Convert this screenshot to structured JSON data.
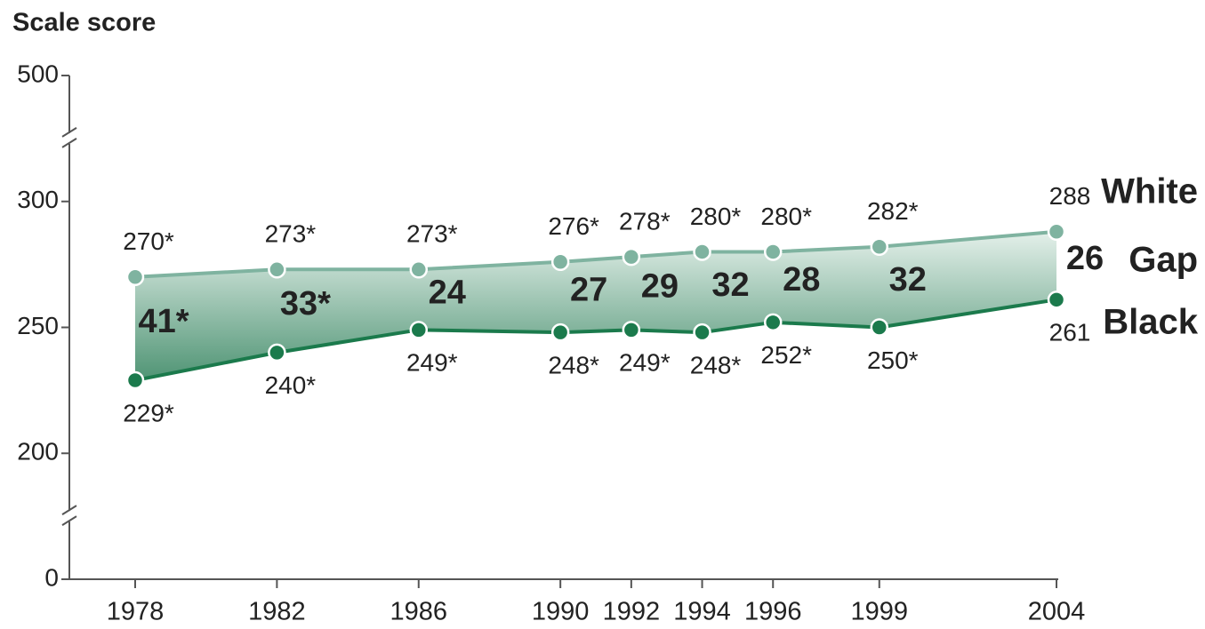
{
  "chart_data": {
    "type": "line",
    "y_axis_label": "Scale score",
    "x": [
      1978,
      1982,
      1986,
      1990,
      1992,
      1994,
      1996,
      1999,
      2004
    ],
    "xlim": [
      1978,
      2004
    ],
    "ylim": [
      0,
      500
    ],
    "yticks": [
      0,
      200,
      250,
      300,
      500
    ],
    "broken_axis": true,
    "series": [
      {
        "name": "White",
        "color": "#7fb3a0",
        "values": [
          270,
          273,
          273,
          276,
          278,
          280,
          280,
          282,
          288
        ],
        "value_labels": [
          "270*",
          "273*",
          "273*",
          "276*",
          "278*",
          "280*",
          "280*",
          "282*",
          "288"
        ]
      },
      {
        "name": "Black",
        "color": "#1b7a4c",
        "values": [
          229,
          240,
          249,
          248,
          249,
          248,
          252,
          250,
          261
        ],
        "value_labels": [
          "229*",
          "240*",
          "249*",
          "248*",
          "249*",
          "248*",
          "252*",
          "250*",
          "261"
        ]
      }
    ],
    "gap": {
      "name": "Gap",
      "color": "#1a1a1a",
      "values": [
        41,
        33,
        24,
        27,
        29,
        32,
        28,
        32,
        26
      ],
      "value_labels": [
        "41*",
        "33*",
        "24",
        "27",
        "29",
        "32",
        "28",
        "32",
        "26"
      ]
    }
  }
}
